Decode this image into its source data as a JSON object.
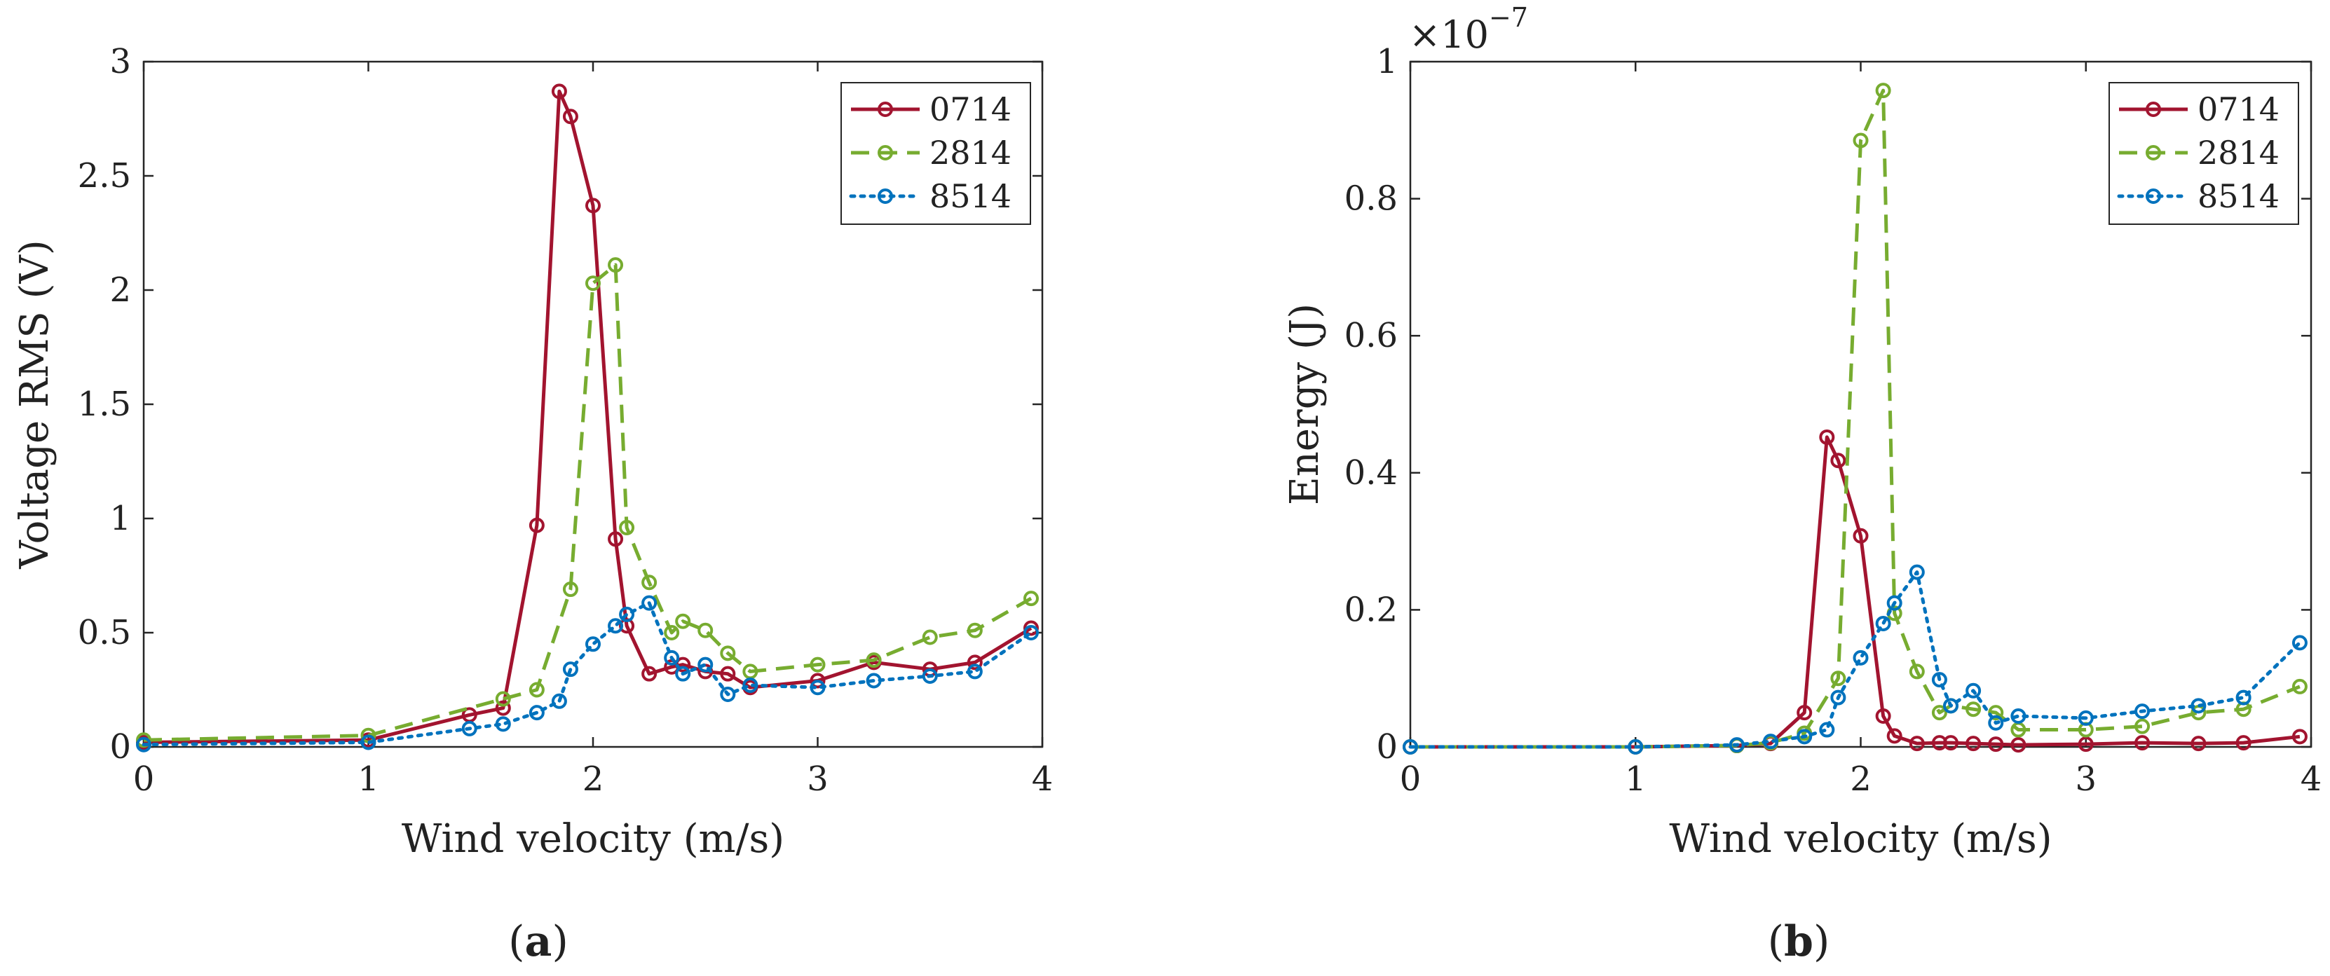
{
  "colors": {
    "s0714": "#a2142f",
    "s2814": "#77ac30",
    "s8514": "#0072bd",
    "axis": "#262626"
  },
  "chart_data": [
    {
      "type": "line",
      "panel_label": "a",
      "xlabel": "Wind velocity (m/s)",
      "ylabel": "Voltage RMS (V)",
      "xlim": [
        0,
        4
      ],
      "ylim": [
        0,
        3
      ],
      "xticks": [
        0,
        1,
        2,
        3,
        4
      ],
      "xtick_labels": [
        "0",
        "1",
        "2",
        "3",
        "4"
      ],
      "yticks": [
        0,
        0.5,
        1,
        1.5,
        2,
        2.5,
        3
      ],
      "ytick_labels": [
        "0",
        "0.5",
        "1",
        "1.5",
        "2",
        "2.5",
        "3"
      ],
      "grid": false,
      "legend_position": "top-right",
      "series": [
        {
          "name": "0714",
          "color_key": "s0714",
          "line_style": "solid",
          "x": [
            0,
            1,
            1.45,
            1.6,
            1.75,
            1.85,
            1.9,
            2.0,
            2.1,
            2.15,
            2.25,
            2.35,
            2.4,
            2.5,
            2.6,
            2.7,
            3.0,
            3.25,
            3.5,
            3.7,
            3.95
          ],
          "y": [
            0.02,
            0.03,
            0.14,
            0.17,
            0.97,
            2.87,
            2.76,
            2.37,
            0.91,
            0.53,
            0.32,
            0.35,
            0.36,
            0.33,
            0.32,
            0.26,
            0.29,
            0.37,
            0.34,
            0.37,
            0.52
          ]
        },
        {
          "name": "2814",
          "color_key": "s2814",
          "line_style": "dashed",
          "x": [
            0,
            1,
            1.6,
            1.75,
            1.9,
            2.0,
            2.1,
            2.15,
            2.25,
            2.35,
            2.4,
            2.5,
            2.6,
            2.7,
            3.0,
            3.25,
            3.5,
            3.7,
            3.95
          ],
          "y": [
            0.03,
            0.05,
            0.21,
            0.25,
            0.69,
            2.03,
            2.11,
            0.96,
            0.72,
            0.5,
            0.55,
            0.51,
            0.41,
            0.33,
            0.36,
            0.38,
            0.48,
            0.51,
            0.65
          ]
        },
        {
          "name": "8514",
          "color_key": "s8514",
          "line_style": "dotted",
          "x": [
            0,
            1,
            1.45,
            1.6,
            1.75,
            1.85,
            1.9,
            2.0,
            2.1,
            2.15,
            2.25,
            2.35,
            2.4,
            2.5,
            2.6,
            2.7,
            3.0,
            3.25,
            3.5,
            3.7,
            3.95
          ],
          "y": [
            0.01,
            0.02,
            0.08,
            0.1,
            0.15,
            0.2,
            0.34,
            0.45,
            0.53,
            0.58,
            0.63,
            0.39,
            0.32,
            0.36,
            0.23,
            0.27,
            0.26,
            0.29,
            0.31,
            0.33,
            0.5
          ]
        }
      ]
    },
    {
      "type": "line",
      "panel_label": "b",
      "xlabel": "Wind velocity (m/s)",
      "ylabel": "Energy (J)",
      "y_multiplier_base": "×10",
      "y_multiplier_exponent": "−7",
      "xlim": [
        0,
        4
      ],
      "ylim": [
        0,
        1
      ],
      "xticks": [
        0,
        1,
        2,
        3,
        4
      ],
      "xtick_labels": [
        "0",
        "1",
        "2",
        "3",
        "4"
      ],
      "yticks": [
        0,
        0.2,
        0.4,
        0.6,
        0.8,
        1
      ],
      "ytick_labels": [
        "0",
        "0.2",
        "0.4",
        "0.6",
        "0.8",
        "1"
      ],
      "grid": false,
      "legend_position": "top-right",
      "series": [
        {
          "name": "0714",
          "color_key": "s0714",
          "line_style": "solid",
          "x": [
            0,
            1,
            1.45,
            1.6,
            1.75,
            1.85,
            1.9,
            2.0,
            2.1,
            2.15,
            2.25,
            2.35,
            2.4,
            2.5,
            2.6,
            2.7,
            3.0,
            3.25,
            3.5,
            3.7,
            3.95
          ],
          "y": [
            0,
            0,
            0.002,
            0.005,
            0.05,
            0.452,
            0.418,
            0.308,
            0.045,
            0.016,
            0.005,
            0.006,
            0.006,
            0.005,
            0.004,
            0.003,
            0.004,
            0.006,
            0.005,
            0.006,
            0.015
          ]
        },
        {
          "name": "2814",
          "color_key": "s2814",
          "line_style": "dashed",
          "x": [
            0,
            1,
            1.45,
            1.6,
            1.75,
            1.9,
            2.0,
            2.1,
            2.15,
            2.25,
            2.35,
            2.4,
            2.5,
            2.6,
            2.7,
            3.0,
            3.25,
            3.5,
            3.7,
            3.95
          ],
          "y": [
            0,
            0,
            0.002,
            0.006,
            0.02,
            0.1,
            0.885,
            0.958,
            0.195,
            0.11,
            0.05,
            0.06,
            0.055,
            0.05,
            0.025,
            0.025,
            0.03,
            0.05,
            0.055,
            0.088
          ]
        },
        {
          "name": "8514",
          "color_key": "s8514",
          "line_style": "dotted",
          "x": [
            0,
            1,
            1.45,
            1.6,
            1.75,
            1.85,
            1.9,
            2.0,
            2.1,
            2.15,
            2.25,
            2.35,
            2.4,
            2.5,
            2.6,
            2.7,
            3.0,
            3.25,
            3.5,
            3.7,
            3.95
          ],
          "y": [
            0,
            0,
            0.003,
            0.008,
            0.015,
            0.025,
            0.072,
            0.13,
            0.18,
            0.21,
            0.255,
            0.098,
            0.06,
            0.082,
            0.035,
            0.045,
            0.042,
            0.052,
            0.06,
            0.072,
            0.152
          ]
        }
      ]
    }
  ]
}
